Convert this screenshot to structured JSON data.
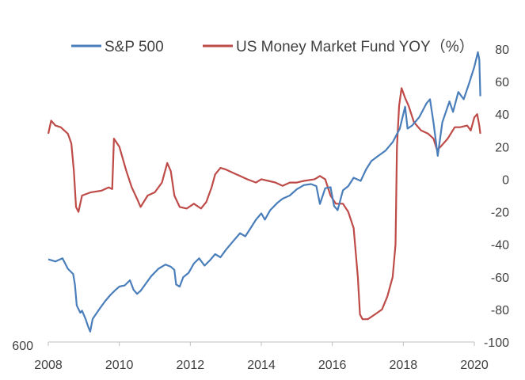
{
  "chart_data": {
    "type": "line",
    "legend_position": "top",
    "grid": false,
    "series": [
      {
        "name": "S&P 500",
        "color": "#4a7ebb",
        "axis": "left",
        "points": [
          [
            2008.0,
            1390
          ],
          [
            2008.2,
            1370
          ],
          [
            2008.4,
            1400
          ],
          [
            2008.55,
            1300
          ],
          [
            2008.7,
            1250
          ],
          [
            2008.75,
            1150
          ],
          [
            2008.8,
            950
          ],
          [
            2008.9,
            880
          ],
          [
            2008.95,
            900
          ],
          [
            2009.05,
            820
          ],
          [
            2009.12,
            750
          ],
          [
            2009.18,
            700
          ],
          [
            2009.25,
            820
          ],
          [
            2009.35,
            870
          ],
          [
            2009.45,
            920
          ],
          [
            2009.6,
            990
          ],
          [
            2009.75,
            1050
          ],
          [
            2009.9,
            1100
          ],
          [
            2010.0,
            1130
          ],
          [
            2010.15,
            1140
          ],
          [
            2010.3,
            1190
          ],
          [
            2010.4,
            1100
          ],
          [
            2010.5,
            1060
          ],
          [
            2010.6,
            1090
          ],
          [
            2010.75,
            1160
          ],
          [
            2010.9,
            1230
          ],
          [
            2011.1,
            1300
          ],
          [
            2011.3,
            1340
          ],
          [
            2011.45,
            1320
          ],
          [
            2011.55,
            1290
          ],
          [
            2011.6,
            1150
          ],
          [
            2011.7,
            1130
          ],
          [
            2011.8,
            1220
          ],
          [
            2011.95,
            1260
          ],
          [
            2012.1,
            1350
          ],
          [
            2012.25,
            1400
          ],
          [
            2012.4,
            1330
          ],
          [
            2012.55,
            1380
          ],
          [
            2012.7,
            1440
          ],
          [
            2012.85,
            1410
          ],
          [
            2013.0,
            1480
          ],
          [
            2013.2,
            1560
          ],
          [
            2013.4,
            1640
          ],
          [
            2013.55,
            1610
          ],
          [
            2013.7,
            1690
          ],
          [
            2013.85,
            1770
          ],
          [
            2014.0,
            1830
          ],
          [
            2014.1,
            1770
          ],
          [
            2014.25,
            1860
          ],
          [
            2014.45,
            1930
          ],
          [
            2014.6,
            1970
          ],
          [
            2014.8,
            2000
          ],
          [
            2015.0,
            2060
          ],
          [
            2015.2,
            2100
          ],
          [
            2015.4,
            2110
          ],
          [
            2015.55,
            2090
          ],
          [
            2015.65,
            1920
          ],
          [
            2015.8,
            2070
          ],
          [
            2015.95,
            2080
          ],
          [
            2016.05,
            1900
          ],
          [
            2016.15,
            1860
          ],
          [
            2016.3,
            2050
          ],
          [
            2016.45,
            2090
          ],
          [
            2016.6,
            2170
          ],
          [
            2016.8,
            2140
          ],
          [
            2016.95,
            2250
          ],
          [
            2017.1,
            2330
          ],
          [
            2017.3,
            2380
          ],
          [
            2017.5,
            2430
          ],
          [
            2017.7,
            2510
          ],
          [
            2017.9,
            2640
          ],
          [
            2018.05,
            2850
          ],
          [
            2018.12,
            2640
          ],
          [
            2018.25,
            2670
          ],
          [
            2018.45,
            2750
          ],
          [
            2018.65,
            2880
          ],
          [
            2018.75,
            2920
          ],
          [
            2018.85,
            2700
          ],
          [
            2018.97,
            2380
          ],
          [
            2019.1,
            2700
          ],
          [
            2019.3,
            2900
          ],
          [
            2019.4,
            2800
          ],
          [
            2019.55,
            2990
          ],
          [
            2019.7,
            2920
          ],
          [
            2019.85,
            3070
          ],
          [
            2020.0,
            3230
          ],
          [
            2020.1,
            3370
          ],
          [
            2020.14,
            3300
          ],
          [
            2020.17,
            2950
          ]
        ]
      },
      {
        "name": "US Money Market Fund YOY（%）",
        "color": "#be4b48",
        "axis": "right",
        "points": [
          [
            2008.0,
            28
          ],
          [
            2008.08,
            36
          ],
          [
            2008.2,
            33
          ],
          [
            2008.35,
            32
          ],
          [
            2008.55,
            28
          ],
          [
            2008.65,
            22
          ],
          [
            2008.72,
            5
          ],
          [
            2008.78,
            -17
          ],
          [
            2008.85,
            -20
          ],
          [
            2008.95,
            -10
          ],
          [
            2009.2,
            -8
          ],
          [
            2009.5,
            -7
          ],
          [
            2009.7,
            -5
          ],
          [
            2009.8,
            -6
          ],
          [
            2009.85,
            25
          ],
          [
            2010.0,
            20
          ],
          [
            2010.2,
            5
          ],
          [
            2010.35,
            -5
          ],
          [
            2010.5,
            -12
          ],
          [
            2010.6,
            -17
          ],
          [
            2010.8,
            -10
          ],
          [
            2011.0,
            -8
          ],
          [
            2011.2,
            -2
          ],
          [
            2011.35,
            10
          ],
          [
            2011.45,
            5
          ],
          [
            2011.55,
            -10
          ],
          [
            2011.7,
            -17
          ],
          [
            2011.9,
            -18
          ],
          [
            2012.1,
            -15
          ],
          [
            2012.3,
            -18
          ],
          [
            2012.45,
            -14
          ],
          [
            2012.6,
            -5
          ],
          [
            2012.7,
            3
          ],
          [
            2012.85,
            7
          ],
          [
            2013.0,
            6
          ],
          [
            2013.2,
            4
          ],
          [
            2013.4,
            2
          ],
          [
            2013.6,
            0
          ],
          [
            2013.85,
            -2
          ],
          [
            2014.0,
            0
          ],
          [
            2014.2,
            -1
          ],
          [
            2014.4,
            -2
          ],
          [
            2014.6,
            -4
          ],
          [
            2014.8,
            -2
          ],
          [
            2015.0,
            -2
          ],
          [
            2015.2,
            -1
          ],
          [
            2015.5,
            0
          ],
          [
            2015.65,
            2
          ],
          [
            2015.8,
            0
          ],
          [
            2015.95,
            -10
          ],
          [
            2016.1,
            -15
          ],
          [
            2016.3,
            -15
          ],
          [
            2016.45,
            -20
          ],
          [
            2016.6,
            -30
          ],
          [
            2016.72,
            -60
          ],
          [
            2016.78,
            -83
          ],
          [
            2016.85,
            -86
          ],
          [
            2017.0,
            -86
          ],
          [
            2017.2,
            -83
          ],
          [
            2017.4,
            -80
          ],
          [
            2017.55,
            -72
          ],
          [
            2017.7,
            -60
          ],
          [
            2017.78,
            -40
          ],
          [
            2017.82,
            20
          ],
          [
            2017.88,
            45
          ],
          [
            2017.95,
            56
          ],
          [
            2018.05,
            50
          ],
          [
            2018.15,
            45
          ],
          [
            2018.3,
            35
          ],
          [
            2018.5,
            30
          ],
          [
            2018.7,
            28
          ],
          [
            2018.85,
            25
          ],
          [
            2018.95,
            18
          ],
          [
            2019.05,
            20
          ],
          [
            2019.25,
            25
          ],
          [
            2019.45,
            32
          ],
          [
            2019.6,
            32
          ],
          [
            2019.8,
            33
          ],
          [
            2019.9,
            30
          ],
          [
            2020.0,
            38
          ],
          [
            2020.08,
            40
          ],
          [
            2020.14,
            33
          ],
          [
            2020.17,
            28
          ]
        ]
      }
    ],
    "xaxis": {
      "range": [
        2008,
        2020
      ],
      "ticks": [
        2008,
        2010,
        2012,
        2014,
        2016,
        2018,
        2020
      ]
    },
    "yaxis_left": {
      "range": [
        600,
        3400
      ],
      "visible_ticks": [
        600
      ]
    },
    "yaxis_right": {
      "range": [
        -100,
        80
      ],
      "ticks": [
        80,
        60,
        40,
        20,
        0,
        -20,
        -40,
        -60,
        -80,
        -100
      ]
    }
  }
}
